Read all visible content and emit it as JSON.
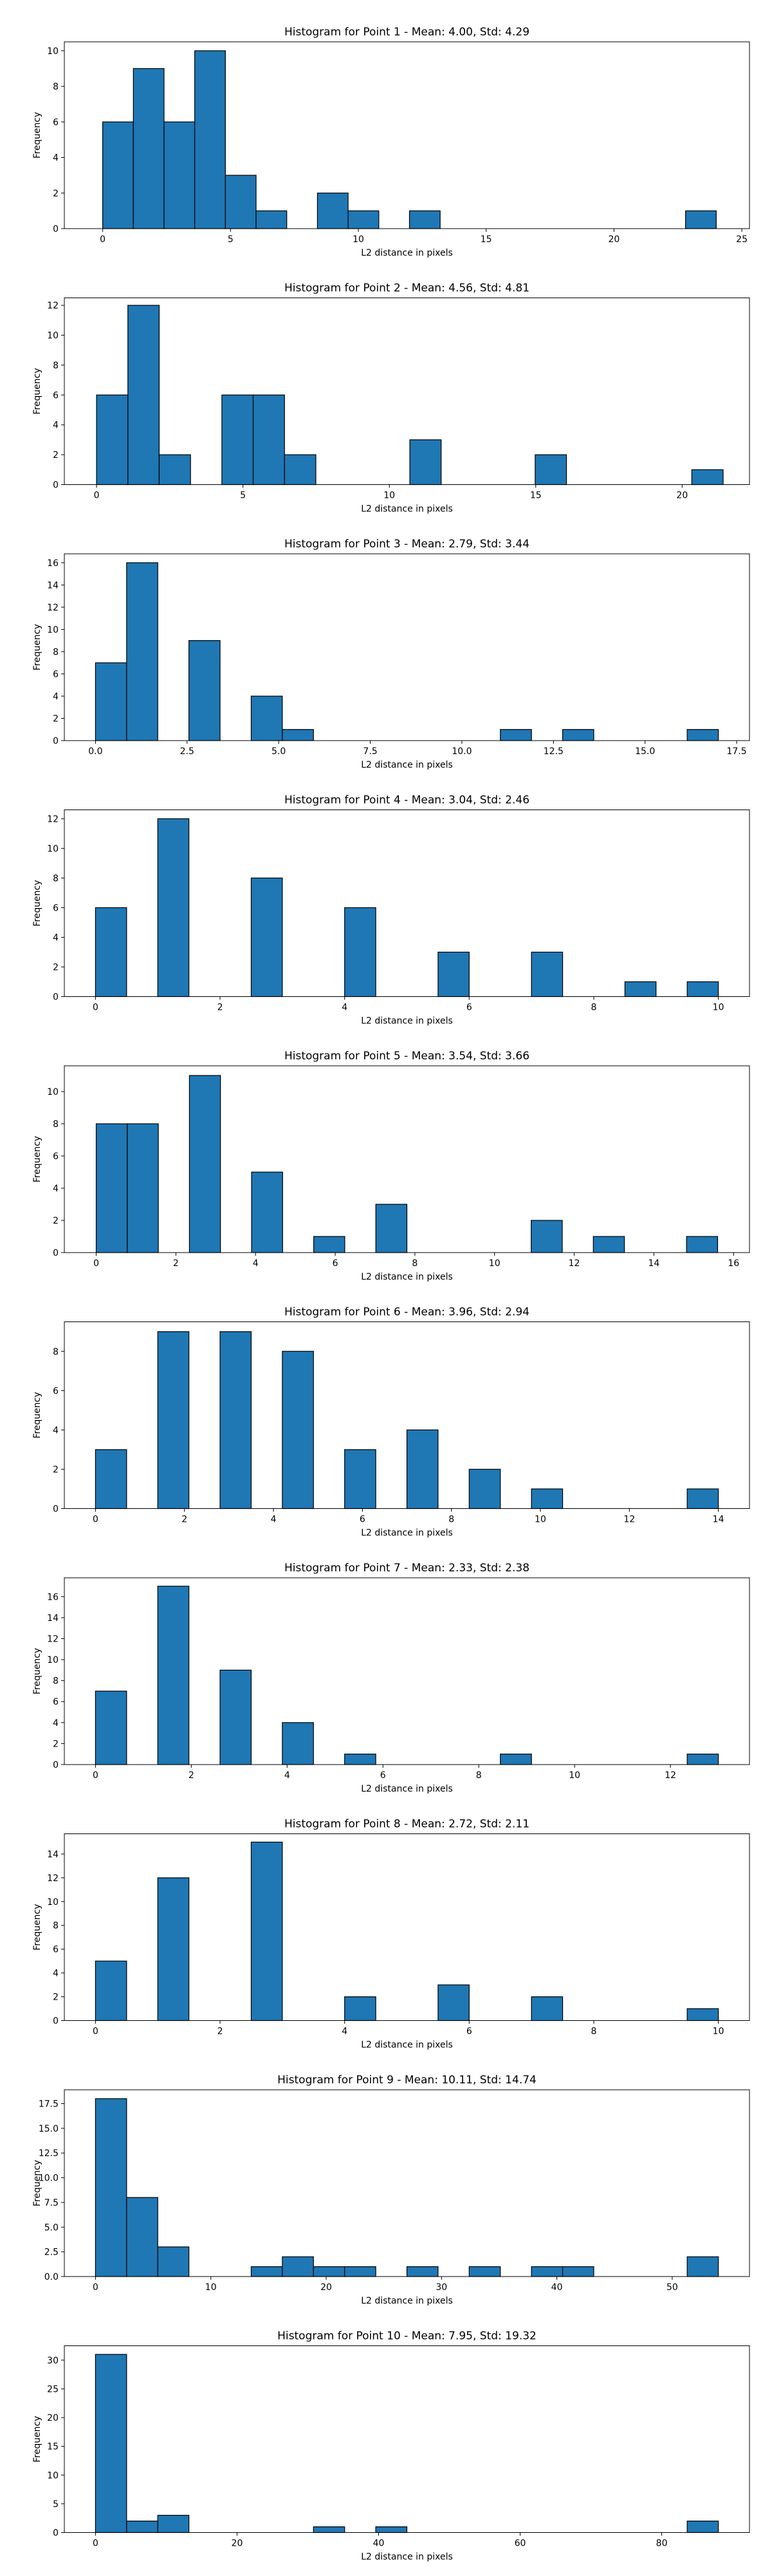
{
  "figure": {
    "background": "#ffffff",
    "bar_color": "#1f77b4",
    "edge_color": "#000000"
  },
  "chart_data": [
    {
      "type": "bar",
      "title": "Histogram for Point 1 - Mean: 4.00, Std: 4.29",
      "xlabel": "L2 distance in pixels",
      "ylabel": "Frequency",
      "xlim": [
        -1.5,
        25.3
      ],
      "ylim": [
        0,
        10.5
      ],
      "xticks": [
        "0",
        "5",
        "10",
        "15",
        "20",
        "25"
      ],
      "yticks": [
        "0",
        "2",
        "4",
        "6",
        "8",
        "10"
      ],
      "bins": [
        {
          "x0": 0.0,
          "x1": 1.2,
          "count": 6
        },
        {
          "x0": 1.2,
          "x1": 2.4,
          "count": 9
        },
        {
          "x0": 2.4,
          "x1": 3.6,
          "count": 6
        },
        {
          "x0": 3.6,
          "x1": 4.8,
          "count": 10
        },
        {
          "x0": 4.8,
          "x1": 6.0,
          "count": 3
        },
        {
          "x0": 6.0,
          "x1": 7.2,
          "count": 1
        },
        {
          "x0": 8.4,
          "x1": 9.6,
          "count": 2
        },
        {
          "x0": 9.6,
          "x1": 10.8,
          "count": 1
        },
        {
          "x0": 12.0,
          "x1": 13.2,
          "count": 1
        },
        {
          "x0": 22.8,
          "x1": 24.0,
          "count": 1
        }
      ]
    },
    {
      "type": "bar",
      "title": "Histogram for Point 2 - Mean: 4.56, Std: 4.81",
      "xlabel": "L2 distance in pixels",
      "ylabel": "Frequency",
      "xlim": [
        -1.1,
        22.3
      ],
      "ylim": [
        0,
        12.5
      ],
      "xticks": [
        "0",
        "5",
        "10",
        "15",
        "20"
      ],
      "yticks": [
        "0",
        "2",
        "4",
        "6",
        "8",
        "10",
        "12"
      ],
      "bins": [
        {
          "x0": 0.0,
          "x1": 1.07,
          "count": 6
        },
        {
          "x0": 1.07,
          "x1": 2.14,
          "count": 12
        },
        {
          "x0": 2.14,
          "x1": 3.21,
          "count": 2
        },
        {
          "x0": 4.28,
          "x1": 5.35,
          "count": 6
        },
        {
          "x0": 5.35,
          "x1": 6.42,
          "count": 6
        },
        {
          "x0": 6.42,
          "x1": 7.49,
          "count": 2
        },
        {
          "x0": 10.7,
          "x1": 11.77,
          "count": 3
        },
        {
          "x0": 14.98,
          "x1": 16.05,
          "count": 2
        },
        {
          "x0": 20.33,
          "x1": 21.4,
          "count": 1
        }
      ]
    },
    {
      "type": "bar",
      "title": "Histogram for Point 3 - Mean: 2.79, Std: 3.44",
      "xlabel": "L2 distance in pixels",
      "ylabel": "Frequency",
      "xlim": [
        -0.85,
        17.85
      ],
      "ylim": [
        0,
        16.8
      ],
      "xticks": [
        "0.0",
        "2.5",
        "5.0",
        "7.5",
        "10.0",
        "12.5",
        "15.0",
        "17.5"
      ],
      "yticks": [
        "0",
        "2",
        "4",
        "6",
        "8",
        "10",
        "12",
        "14",
        "16"
      ],
      "bins": [
        {
          "x0": 0.0,
          "x1": 0.85,
          "count": 7
        },
        {
          "x0": 0.85,
          "x1": 1.7,
          "count": 16
        },
        {
          "x0": 2.55,
          "x1": 3.4,
          "count": 9
        },
        {
          "x0": 4.25,
          "x1": 5.1,
          "count": 4
        },
        {
          "x0": 5.1,
          "x1": 5.95,
          "count": 1
        },
        {
          "x0": 11.05,
          "x1": 11.9,
          "count": 1
        },
        {
          "x0": 12.75,
          "x1": 13.6,
          "count": 1
        },
        {
          "x0": 16.15,
          "x1": 17.0,
          "count": 1
        }
      ]
    },
    {
      "type": "bar",
      "title": "Histogram for Point 4 - Mean: 3.04, Std: 2.46",
      "xlabel": "L2 distance in pixels",
      "ylabel": "Frequency",
      "xlim": [
        -0.5,
        10.5
      ],
      "ylim": [
        0,
        12.6
      ],
      "xticks": [
        "0",
        "2",
        "4",
        "6",
        "8",
        "10"
      ],
      "yticks": [
        "0",
        "2",
        "4",
        "6",
        "8",
        "10",
        "12"
      ],
      "bins": [
        {
          "x0": 0.0,
          "x1": 0.5,
          "count": 6
        },
        {
          "x0": 1.0,
          "x1": 1.5,
          "count": 12
        },
        {
          "x0": 2.5,
          "x1": 3.0,
          "count": 8
        },
        {
          "x0": 4.0,
          "x1": 4.5,
          "count": 6
        },
        {
          "x0": 5.5,
          "x1": 6.0,
          "count": 3
        },
        {
          "x0": 7.0,
          "x1": 7.5,
          "count": 3
        },
        {
          "x0": 8.5,
          "x1": 9.0,
          "count": 1
        },
        {
          "x0": 9.5,
          "x1": 10.0,
          "count": 1
        }
      ]
    },
    {
      "type": "bar",
      "title": "Histogram for Point 5 - Mean: 3.54, Std: 3.66",
      "xlabel": "L2 distance in pixels",
      "ylabel": "Frequency",
      "xlim": [
        -0.8,
        16.4
      ],
      "ylim": [
        0,
        11.6
      ],
      "xticks": [
        "0",
        "2",
        "4",
        "6",
        "8",
        "10",
        "12",
        "14",
        "16"
      ],
      "yticks": [
        "0",
        "2",
        "4",
        "6",
        "8",
        "10"
      ],
      "bins": [
        {
          "x0": 0.0,
          "x1": 0.78,
          "count": 8
        },
        {
          "x0": 0.78,
          "x1": 1.56,
          "count": 8
        },
        {
          "x0": 2.34,
          "x1": 3.12,
          "count": 11
        },
        {
          "x0": 3.9,
          "x1": 4.68,
          "count": 5
        },
        {
          "x0": 5.46,
          "x1": 6.24,
          "count": 1
        },
        {
          "x0": 7.02,
          "x1": 7.8,
          "count": 3
        },
        {
          "x0": 10.92,
          "x1": 11.7,
          "count": 2
        },
        {
          "x0": 12.48,
          "x1": 13.26,
          "count": 1
        },
        {
          "x0": 14.82,
          "x1": 15.6,
          "count": 1
        }
      ]
    },
    {
      "type": "bar",
      "title": "Histogram for Point 6 - Mean: 3.96, Std: 2.94",
      "xlabel": "L2 distance in pixels",
      "ylabel": "Frequency",
      "xlim": [
        -0.7,
        14.7
      ],
      "ylim": [
        0,
        9.5
      ],
      "xticks": [
        "0",
        "2",
        "4",
        "6",
        "8",
        "10",
        "12",
        "14"
      ],
      "yticks": [
        "0",
        "2",
        "4",
        "6",
        "8"
      ],
      "bins": [
        {
          "x0": 0.0,
          "x1": 0.7,
          "count": 3
        },
        {
          "x0": 1.4,
          "x1": 2.1,
          "count": 9
        },
        {
          "x0": 2.8,
          "x1": 3.5,
          "count": 9
        },
        {
          "x0": 4.2,
          "x1": 4.9,
          "count": 8
        },
        {
          "x0": 5.6,
          "x1": 6.3,
          "count": 3
        },
        {
          "x0": 7.0,
          "x1": 7.7,
          "count": 4
        },
        {
          "x0": 8.4,
          "x1": 9.1,
          "count": 2
        },
        {
          "x0": 9.8,
          "x1": 10.5,
          "count": 1
        },
        {
          "x0": 13.3,
          "x1": 14.0,
          "count": 1
        }
      ]
    },
    {
      "type": "bar",
      "title": "Histogram for Point 7 - Mean: 2.33, Std: 2.38",
      "xlabel": "L2 distance in pixels",
      "ylabel": "Frequency",
      "xlim": [
        -0.65,
        13.65
      ],
      "ylim": [
        0,
        17.8
      ],
      "xticks": [
        "0",
        "2",
        "4",
        "6",
        "8",
        "10",
        "12"
      ],
      "yticks": [
        "0",
        "2",
        "4",
        "6",
        "8",
        "10",
        "12",
        "14",
        "16"
      ],
      "bins": [
        {
          "x0": 0.0,
          "x1": 0.65,
          "count": 7
        },
        {
          "x0": 1.3,
          "x1": 1.95,
          "count": 17
        },
        {
          "x0": 2.6,
          "x1": 3.25,
          "count": 9
        },
        {
          "x0": 3.9,
          "x1": 4.55,
          "count": 4
        },
        {
          "x0": 5.2,
          "x1": 5.85,
          "count": 1
        },
        {
          "x0": 8.45,
          "x1": 9.1,
          "count": 1
        },
        {
          "x0": 12.35,
          "x1": 13.0,
          "count": 1
        }
      ]
    },
    {
      "type": "bar",
      "title": "Histogram for Point 8 - Mean: 2.72, Std: 2.11",
      "xlabel": "L2 distance in pixels",
      "ylabel": "Frequency",
      "xlim": [
        -0.5,
        10.5
      ],
      "ylim": [
        0,
        15.7
      ],
      "xticks": [
        "0",
        "2",
        "4",
        "6",
        "8",
        "10"
      ],
      "yticks": [
        "0",
        "2",
        "4",
        "6",
        "8",
        "10",
        "12",
        "14"
      ],
      "bins": [
        {
          "x0": 0.0,
          "x1": 0.5,
          "count": 5
        },
        {
          "x0": 1.0,
          "x1": 1.5,
          "count": 12
        },
        {
          "x0": 2.5,
          "x1": 3.0,
          "count": 15
        },
        {
          "x0": 4.0,
          "x1": 4.5,
          "count": 2
        },
        {
          "x0": 5.5,
          "x1": 6.0,
          "count": 3
        },
        {
          "x0": 7.0,
          "x1": 7.5,
          "count": 2
        },
        {
          "x0": 9.5,
          "x1": 10.0,
          "count": 1
        }
      ]
    },
    {
      "type": "bar",
      "title": "Histogram for Point 9 - Mean: 10.11, Std: 14.74",
      "xlabel": "L2 distance in pixels",
      "ylabel": "Frequency",
      "xlim": [
        -2.7,
        56.7
      ],
      "ylim": [
        0,
        18.9
      ],
      "xticks": [
        "0",
        "10",
        "20",
        "30",
        "40",
        "50"
      ],
      "yticks": [
        "0.0",
        "2.5",
        "5.0",
        "7.5",
        "10.0",
        "12.5",
        "15.0",
        "17.5"
      ],
      "bins": [
        {
          "x0": 0.0,
          "x1": 2.7,
          "count": 18
        },
        {
          "x0": 2.7,
          "x1": 5.4,
          "count": 8
        },
        {
          "x0": 5.4,
          "x1": 8.1,
          "count": 3
        },
        {
          "x0": 13.5,
          "x1": 16.2,
          "count": 1
        },
        {
          "x0": 16.2,
          "x1": 18.9,
          "count": 2
        },
        {
          "x0": 18.9,
          "x1": 21.6,
          "count": 1
        },
        {
          "x0": 21.6,
          "x1": 24.3,
          "count": 1
        },
        {
          "x0": 27.0,
          "x1": 29.7,
          "count": 1
        },
        {
          "x0": 32.4,
          "x1": 35.1,
          "count": 1
        },
        {
          "x0": 37.8,
          "x1": 40.5,
          "count": 1
        },
        {
          "x0": 40.5,
          "x1": 43.2,
          "count": 1
        },
        {
          "x0": 51.3,
          "x1": 54.0,
          "count": 2
        }
      ]
    },
    {
      "type": "bar",
      "title": "Histogram for Point 10 - Mean: 7.95, Std: 19.32",
      "xlabel": "L2 distance in pixels",
      "ylabel": "Frequency",
      "xlim": [
        -4.4,
        92.4
      ],
      "ylim": [
        0,
        32.5
      ],
      "xticks": [
        "0",
        "20",
        "40",
        "60",
        "80"
      ],
      "yticks": [
        "0",
        "5",
        "10",
        "15",
        "20",
        "25",
        "30"
      ],
      "bins": [
        {
          "x0": 0.0,
          "x1": 4.4,
          "count": 31
        },
        {
          "x0": 4.4,
          "x1": 8.8,
          "count": 2
        },
        {
          "x0": 8.8,
          "x1": 13.2,
          "count": 3
        },
        {
          "x0": 30.8,
          "x1": 35.2,
          "count": 1
        },
        {
          "x0": 39.6,
          "x1": 44.0,
          "count": 1
        },
        {
          "x0": 83.6,
          "x1": 88.0,
          "count": 2
        }
      ]
    }
  ]
}
